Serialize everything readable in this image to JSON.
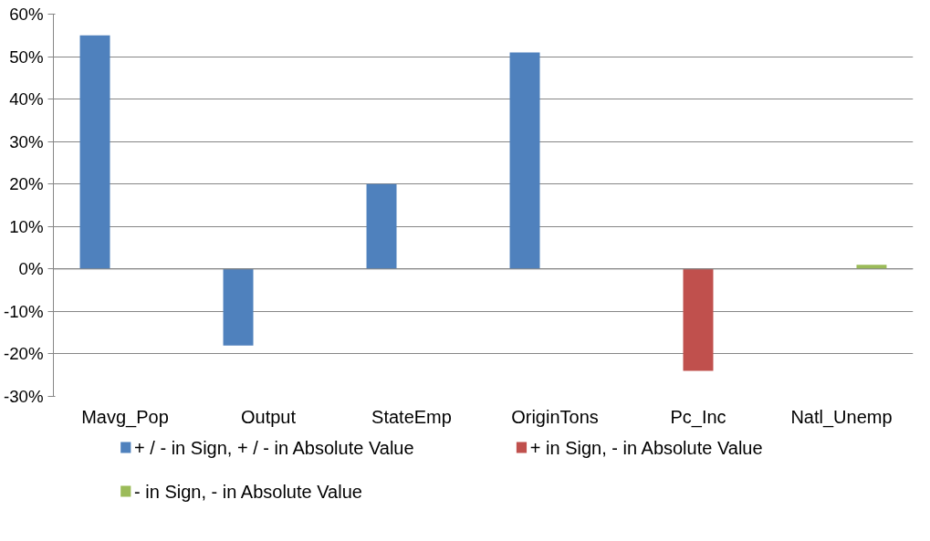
{
  "chart_data": {
    "type": "bar",
    "categories": [
      "Mavg_Pop",
      "Output",
      "StateEmp",
      "OriginTons",
      "Pc_Inc",
      "Natl_Unemp"
    ],
    "series": [
      {
        "name": "+ / - in Sign, + / - in Absolute Value",
        "color": "#4f81bd",
        "values": [
          55,
          -18,
          20,
          51,
          null,
          null
        ]
      },
      {
        "name": "+ in Sign, - in Absolute Value",
        "color": "#c0504d",
        "values": [
          null,
          null,
          null,
          null,
          -24,
          null
        ]
      },
      {
        "name": "- in Sign, - in Absolute Value",
        "color": "#9bbb59",
        "values": [
          null,
          null,
          null,
          null,
          null,
          1
        ]
      }
    ],
    "ylim": [
      -30,
      60
    ],
    "yticks": [
      {
        "value": -30,
        "label": "-30%"
      },
      {
        "value": -20,
        "label": "-20%"
      },
      {
        "value": -10,
        "label": "-10%"
      },
      {
        "value": 0,
        "label": "0%"
      },
      {
        "value": 10,
        "label": "10%"
      },
      {
        "value": 20,
        "label": "20%"
      },
      {
        "value": 30,
        "label": "30%"
      },
      {
        "value": 40,
        "label": "40%"
      },
      {
        "value": 50,
        "label": "50%"
      },
      {
        "value": 60,
        "label": "60%"
      }
    ],
    "grid": "y",
    "legend": "bottom"
  }
}
